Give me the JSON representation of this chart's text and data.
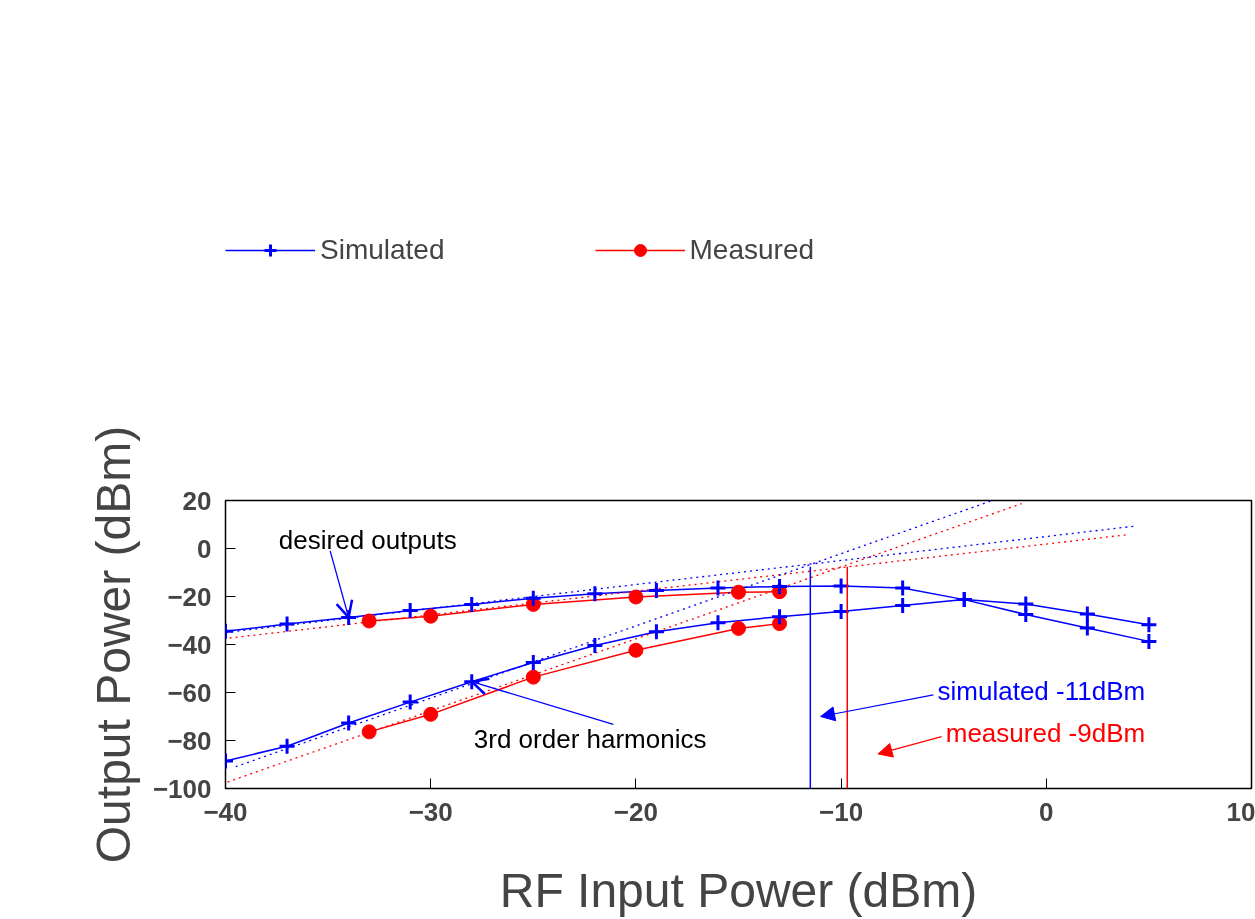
{
  "chart_data": {
    "type": "line",
    "xlabel": "RF Input Power (dBm)",
    "ylabel": "Output Power (dBm)",
    "xlim": [
      -40,
      10
    ],
    "ylim": [
      -100,
      20
    ],
    "xticks": [
      -40,
      -30,
      -20,
      -10,
      0,
      10
    ],
    "yticks": [
      -100,
      -80,
      -60,
      -40,
      -20,
      0,
      20
    ],
    "grid": false,
    "legend": "top",
    "series": [
      {
        "name": "Simulated",
        "color": "#0000ff",
        "marker": "cross",
        "line_style": "solid",
        "x": [
          -40,
          -37,
          -34,
          -31,
          -28,
          -25,
          -22,
          -19,
          -16,
          -13,
          -10,
          -7,
          -4,
          -1,
          2,
          5
        ],
        "values": [
          -34.5,
          -31.5,
          -28.7,
          -25.8,
          -23.3,
          -20.7,
          -18.9,
          -17.5,
          -16.5,
          -15.8,
          -15.6,
          -16.5,
          -21.3,
          -23.1,
          -27.3,
          -31.8
        ]
      },
      {
        "color": "#0000ff",
        "marker": "cross",
        "line_style": "solid",
        "x": [
          -40,
          -37,
          -34,
          -31,
          -28,
          -25,
          -22,
          -19,
          -16,
          -13,
          -10,
          -7,
          -4,
          -1,
          2,
          5
        ],
        "values": [
          -88.5,
          -82.4,
          -72.7,
          -64,
          -55.5,
          -47.5,
          -40.4,
          -34.7,
          -30.9,
          -28.4,
          -26.2,
          -23.8,
          -21.3,
          -27.5,
          -33.1,
          -38.7
        ]
      },
      {
        "name": "Measured",
        "color": "#ff0000",
        "marker": "circle",
        "line_style": "solid",
        "x": [
          -33,
          -30,
          -25,
          -20,
          -15,
          -13
        ],
        "values": [
          -30.2,
          -28.2,
          -23.3,
          -20.2,
          -18.2,
          -18.0
        ]
      },
      {
        "color": "#ff0000",
        "marker": "circle",
        "line_style": "solid",
        "x": [
          -33,
          -30,
          -25,
          -20,
          -15,
          -13
        ],
        "values": [
          -76.4,
          -69.1,
          -53.6,
          -42.4,
          -33.3,
          -31.3
        ]
      },
      {
        "color": "#0000ff",
        "marker": "none",
        "line_style": "dotted",
        "x": [
          -40,
          4.3
        ],
        "values": [
          -35,
          9.3
        ]
      },
      {
        "color": "#ff0000",
        "marker": "none",
        "line_style": "dotted",
        "x": [
          -39.8,
          3.9
        ],
        "values": [
          -37.3,
          5.7
        ]
      },
      {
        "color": "#0000ff",
        "marker": "none",
        "line_style": "dotted",
        "x": [
          -39.5,
          -2.7
        ],
        "values": [
          -90.9,
          19.8
        ]
      },
      {
        "color": "#ff0000",
        "marker": "none",
        "line_style": "dotted",
        "x": [
          -39.9,
          -1.2
        ],
        "values": [
          -97.3,
          18.7
        ]
      }
    ],
    "ref_lines": [
      {
        "axis": "x",
        "value": -11.5,
        "label": "simulated -11dBm",
        "color": "#0000ff"
      },
      {
        "axis": "x",
        "value": -9.7,
        "label": "measured -9dBm",
        "color": "#ff0000"
      }
    ],
    "annotations": [
      {
        "text": "desired outputs",
        "x": -34,
        "y": -28.7
      },
      {
        "text": "3rd order harmonics",
        "x": -28,
        "y": -55.5
      }
    ]
  }
}
